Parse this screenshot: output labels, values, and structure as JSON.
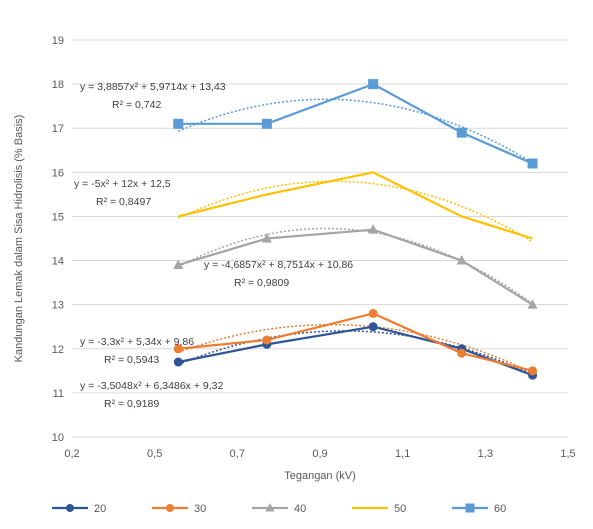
{
  "chart_data": {
    "type": "line",
    "title": "",
    "xlabel": "Tegangan (kV)",
    "ylabel": "Kandungan Lemak dalam Sisa Hidrolisis (% Basis)",
    "xlim": [
      0.2,
      1.6
    ],
    "ylim": [
      10,
      19
    ],
    "x_ticks": [
      "0,2",
      "0,5",
      "0,7",
      "0,9",
      "1,1",
      "1,3",
      "1,5"
    ],
    "y_ticks": [
      "10",
      "11",
      "12",
      "13",
      "14",
      "15",
      "16",
      "17",
      "18",
      "19"
    ],
    "x": [
      0.5,
      0.75,
      1.05,
      1.3,
      1.5
    ],
    "series": [
      {
        "name": "20",
        "color": "#2f5597",
        "marker": "circle",
        "values": [
          11.7,
          12.1,
          12.5,
          12.0,
          11.4
        ]
      },
      {
        "name": "30",
        "color": "#ed7d31",
        "marker": "circle",
        "values": [
          12.0,
          12.2,
          12.8,
          11.9,
          11.5
        ]
      },
      {
        "name": "40",
        "color": "#a5a5a5",
        "marker": "triangle",
        "values": [
          13.9,
          14.5,
          14.7,
          14.0,
          13.0
        ]
      },
      {
        "name": "50",
        "color": "#ffc000",
        "marker": "none",
        "values": [
          15.0,
          15.5,
          16.0,
          15.0,
          14.5
        ]
      },
      {
        "name": "60",
        "color": "#5b9bd5",
        "marker": "square",
        "values": [
          17.1,
          17.1,
          18.0,
          16.9,
          16.2
        ]
      }
    ],
    "trendline_equations": [
      {
        "series": "60",
        "equation": "y = 3,8857x² + 5,9714x + 13,43",
        "r2": "R² = 0,742"
      },
      {
        "series": "50",
        "equation": "y = -5x² + 12x + 12,5",
        "r2": "R² = 0,8497"
      },
      {
        "series": "40",
        "equation": "y = -4,6857x² + 8,7514x + 10,86",
        "r2": "R² = 0,9809"
      },
      {
        "series": "30",
        "equation": "y = -3,3x² + 5,34x + 9,86",
        "r2": "R² = 0,5943"
      },
      {
        "series": "20",
        "equation": "y = -3,5048x² + 6,3486x + 9,32",
        "r2": "R² = 0,9189"
      }
    ],
    "grid": true,
    "legend_position": "bottom"
  }
}
